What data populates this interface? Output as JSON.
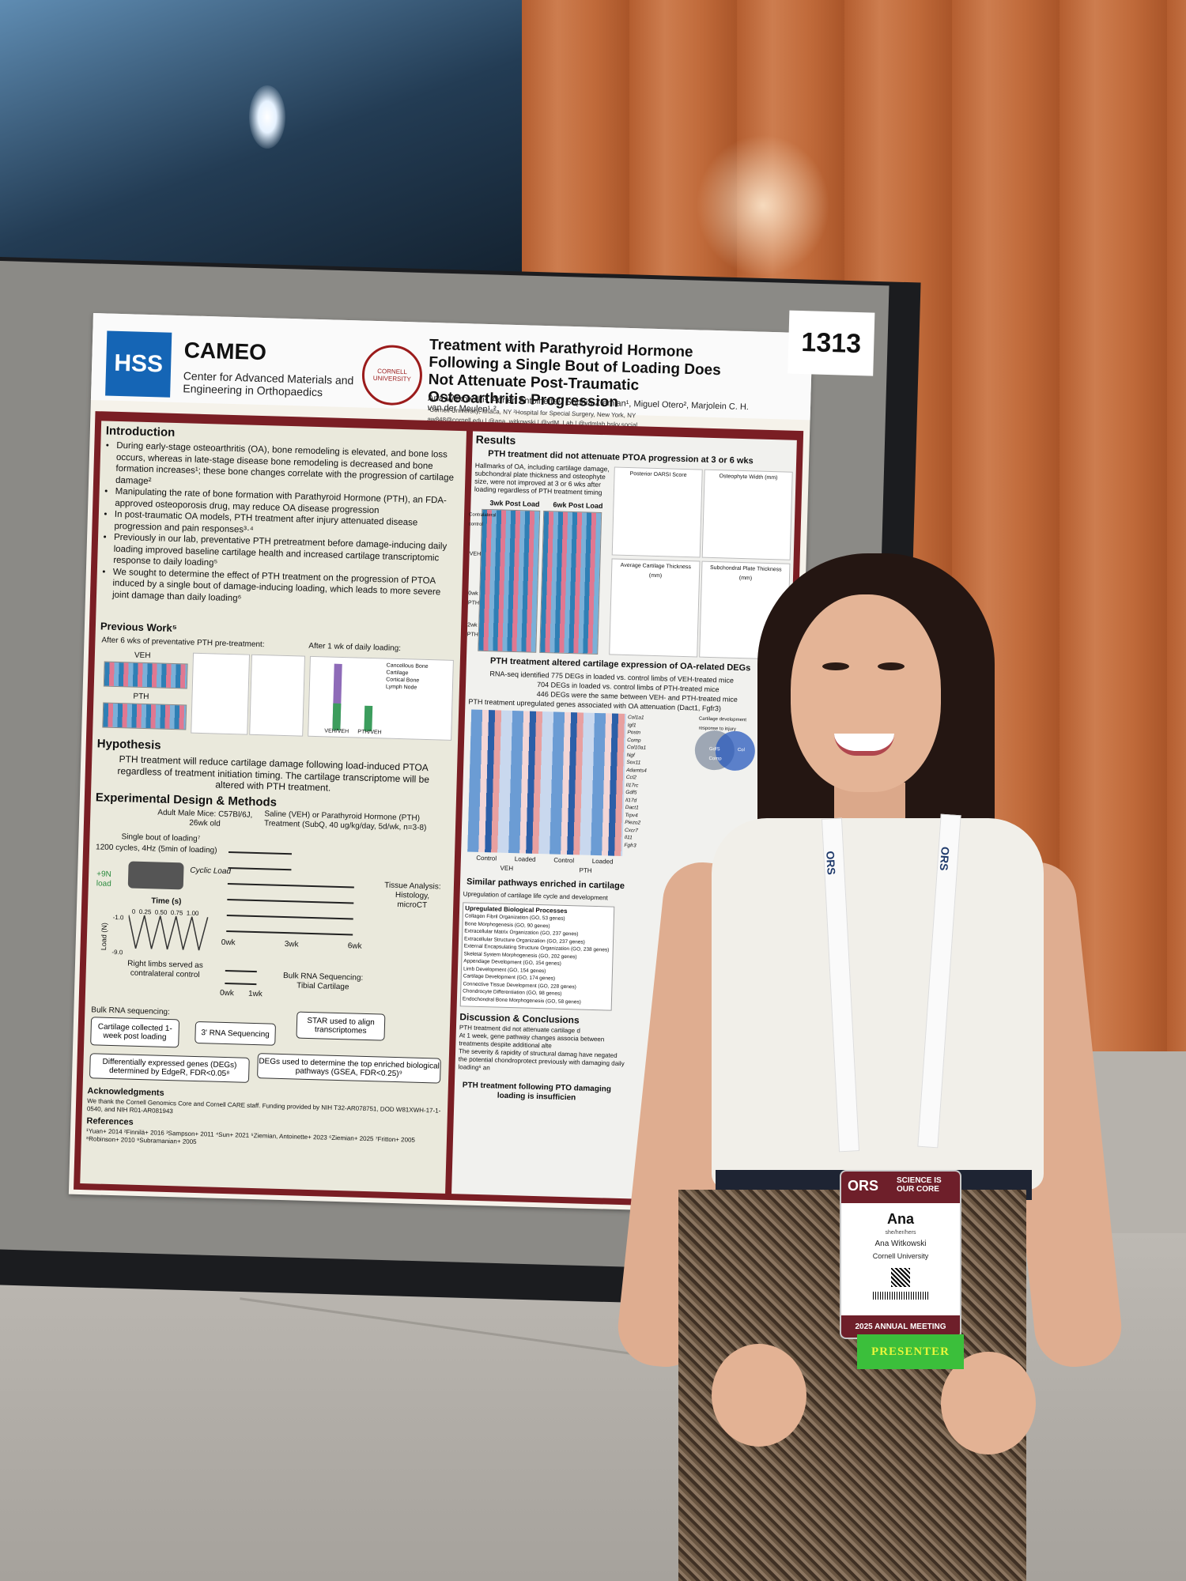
{
  "poster": {
    "hss_logo": "HSS",
    "cameo_title": "CAMEO",
    "cameo_subtitle": "Center for Advanced Materials and Engineering in Orthopaedics",
    "seal_text": "CORNELL UNIVERSITY",
    "title": "Treatment with Parathyroid Hormone Following a Single Bout of Loading Does Not Attenuate Post-Traumatic Osteoarthritis Progression",
    "authors": "Ana Witkowski¹, Adrien Antoinette¹, Sophia Ziemian¹, Miguel Otero², Marjolein C. H. van der Meulen¹·²",
    "affiliations": "¹Cornell University, Ithaca, NY ²Hospital for Special Surgery, New York, NY",
    "contact": "aw848@cornell.edu | @ana_witkowski | @vdM_Lab | @vdmlab.bsky.social",
    "number": "1313",
    "introduction": {
      "heading": "Introduction",
      "bullets": [
        "During early-stage osteoarthritis (OA), bone remodeling is elevated, and bone loss occurs, whereas in late-stage disease bone remodeling is decreased and bone formation increases¹; these bone changes correlate with the progression of cartilage damage²",
        "Manipulating the rate of bone formation with Parathyroid Hormone (PTH), an FDA-approved osteoporosis drug, may reduce OA disease progression",
        "In post-traumatic OA models, PTH treatment after injury attenuated disease progression and pain responses³·⁴",
        "Previously in our lab, preventative PTH pretreatment before damage-inducing daily loading improved baseline cartilage health and increased cartilage transcriptomic response to daily loading⁵",
        "We sought to determine the effect of PTH treatment on the progression of PTOA induced by a single bout of damage-inducing loading, which leads to more severe joint damage than daily loading⁶"
      ]
    },
    "previous_work": {
      "heading": "Previous Work⁵",
      "left_caption": "After 6 wks of preventative PTH pre-treatment:",
      "right_caption": "After 1 wk of daily loading:",
      "veh_label": "VEH",
      "pth_label": "PTH",
      "legend": [
        "Cancellous Bone",
        "Cartilage",
        "Cortical Bone",
        "Lymph Node"
      ],
      "x_labels": [
        "VEH/VEH",
        "PTH/VEH"
      ]
    },
    "hypothesis": {
      "heading": "Hypothesis",
      "text": "PTH treatment will reduce cartilage damage following load-induced PTOA regardless of treatment initiation timing. The cartilage transcriptome will be altered with PTH treatment."
    },
    "methods": {
      "heading": "Experimental Design & Methods",
      "mice": "Adult Male Mice: C57Bl/6J, 26wk old",
      "treatment": "Saline (VEH) or Parathyroid Hormone (PTH) Treatment (SubQ, 40 ug/kg/day, 5d/wk, n=3-8)",
      "loading": "Single bout of loading⁷",
      "cycles": "1200 cycles, 4Hz (5min of loading)",
      "cyclic_load": "Cyclic Load",
      "load_preload": "+9N load",
      "time_label": "Time (s)",
      "time_ticks": [
        "0",
        "0.25",
        "0.50",
        "0.75",
        "1.00"
      ],
      "load_axis": "Load (N)",
      "load_ticks": [
        "-1.0",
        "-9.0"
      ],
      "contralateral": "Right limbs served as contralateral control",
      "timeline_ticks": [
        "0wk",
        "3wk",
        "6wk"
      ],
      "tissue_analysis": "Tissue Analysis: Histology, microCT",
      "bulk_ticks": [
        "0wk",
        "1wk"
      ],
      "bulk_label": "Bulk RNA Sequencing: Tibial Cartilage",
      "bulk_heading": "Bulk RNA sequencing:",
      "flow": [
        "Cartilage collected 1-week post loading",
        "3' RNA Sequencing",
        "STAR used to align transcriptomes",
        "Differentially expressed genes (DEGs) determined by EdgeR, FDR<0.05⁸",
        "DEGs used to determine the top enriched biological pathways (GSEA, FDR<0.25)⁹"
      ]
    },
    "acknowledgments": {
      "heading": "Acknowledgments",
      "text": "We thank the Cornell Genomics Core and Cornell CARE staff. Funding provided by NIH T32-AR078751, DOD W81XWH-17-1-0540, and NIH R01-AR081943"
    },
    "references": {
      "heading": "References",
      "text": "¹Yuan+ 2014 ²Finnilä+ 2016 ³Sampson+ 2011 ⁴Sun+ 2021 ⁵Ziemian, Antoinette+ 2023 ⁶Ziemian+ 2025 ⁷Fritton+ 2005 ⁸Robinson+ 2010 ⁹Subramanian+ 2005"
    },
    "results": {
      "heading": "Results",
      "sub1": "PTH treatment did not attenuate PTOA progression at 3 or 6 wks",
      "text1": "Hallmarks of OA, including cartilage damage, subchondral plate thickness and osteophyte size, were not improved at 3 or 6 wks after loading regardless of PTH treatment timing",
      "col_labels": [
        "3wk Post Load",
        "6wk Post Load"
      ],
      "row_labels": [
        "Contralateral control",
        "VEH",
        "0wk PTH",
        "2wk PTH"
      ],
      "plot_titles": [
        "Posterior OARSI Score",
        "Osteophyte Width (mm)",
        "Average Cartilage Thickness (mm)",
        "Subchondral Plate Thickness (mm)"
      ],
      "sub2": "PTH treatment altered cartilage expression of OA-related DEGs",
      "text2a": "RNA-seq identified 775 DEGs in loaded vs. control limbs of VEH-treated mice",
      "text2b": "704 DEGs in loaded vs. control limbs of PTH-treated mice",
      "text2c": "446 DEGs were the same between VEH- and PTH-treated mice",
      "text2d": "PTH treatment upregulated genes associated with OA attenuation (Dact1, Fgfr3)",
      "genes": [
        "Col1a1",
        "Igf1",
        "Postn",
        "Comp",
        "Col10a1",
        "Ngf",
        "Sox11",
        "Adamts4",
        "Ccl2",
        "Il17rc",
        "Gdf5",
        "Il17d",
        "Dact1",
        "Trpv4",
        "Piezo2",
        "Cxcr7",
        "Il11",
        "Fgfr3"
      ],
      "heat_x": [
        "Control",
        "Loaded",
        "Control",
        "Loaded"
      ],
      "heat_groups": [
        "VEH",
        "PTH"
      ],
      "venn_title": "Cartilage development response to injury",
      "venn_labels": [
        "GdfS Comp",
        "Col"
      ],
      "sub3": "Similar pathways enriched in cartilage",
      "text3": "Upregulation of cartilage life cycle and development",
      "pathway_heading": "Upregulated Biological Processes",
      "pathways": [
        "Collagen Fibril Organization (GO, 53 genes)",
        "Bone Morphogenesis (GO, 90 genes)",
        "Extracellular Matrix Organization (GO, 237 genes)",
        "Extracellular Structure Organization (GO, 237 genes)",
        "External Encapsulating Structure Organization (GO, 238 genes)",
        "Skeletal System Morphogenesis (GO, 202 genes)",
        "Appendage Development (GO, 154 genes)",
        "Limb Development (GO, 154 genes)",
        "Cartilage Development (GO, 174 genes)",
        "Connective Tissue Development (GO, 228 genes)",
        "Chondrocyte Differentiation (GO, 98 genes)",
        "Endochondral Bone Morphogenesis (GO, 58 genes)"
      ]
    },
    "discussion": {
      "heading": "Discussion & Conclusions",
      "bullets": [
        "PTH treatment did not attenuate cartilage d",
        "At 1 week, gene pathway changes associa between treatments despite additional alte",
        "The severity & rapidity of structural damag have negated the potential chondroprotect previously with damaging daily loading⁶ an"
      ],
      "conclusion": "PTH treatment following PTO damaging loading is insufficien"
    }
  },
  "badge": {
    "logo": "ORS",
    "slogan": "SCIENCE IS OUR CORE",
    "first_name": "Ana",
    "pronouns": "she/her/hers",
    "full_name": "Ana Witkowski",
    "institution": "Cornell University",
    "meeting": "2025 ANNUAL MEETING",
    "ribbon": "PRESENTER"
  },
  "lanyard": {
    "text": "ORS"
  }
}
